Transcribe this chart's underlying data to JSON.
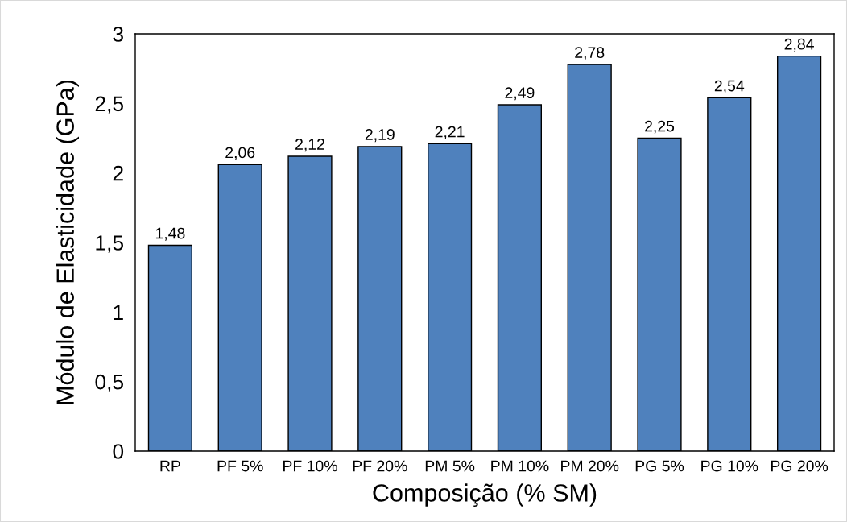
{
  "chart_data": {
    "type": "bar",
    "xlabel": "Composição (% SM)",
    "ylabel": "Módulo de Elasticidade (GPa)",
    "categories": [
      "RP",
      "PF 5%",
      "PF 10%",
      "PF 20%",
      "PM 5%",
      "PM 10%",
      "PM 20%",
      "PG 5%",
      "PG 10%",
      "PG 20%"
    ],
    "values": [
      1.48,
      2.06,
      2.12,
      2.19,
      2.21,
      2.49,
      2.78,
      2.25,
      2.54,
      2.84
    ],
    "value_labels": [
      "1,48",
      "2,06",
      "2,12",
      "2,19",
      "2,21",
      "2,49",
      "2,78",
      "2,25",
      "2,54",
      "2,84"
    ],
    "color": "#4f81bd",
    "ylim": [
      0,
      3
    ],
    "yticks": [
      0,
      {
        "value": 0.5,
        "label": "0,5"
      },
      1,
      {
        "value": 1.5,
        "label": "1,5"
      },
      2,
      {
        "value": 2.5,
        "label": "2,5"
      },
      3
    ],
    "grid": false,
    "legend": false
  }
}
